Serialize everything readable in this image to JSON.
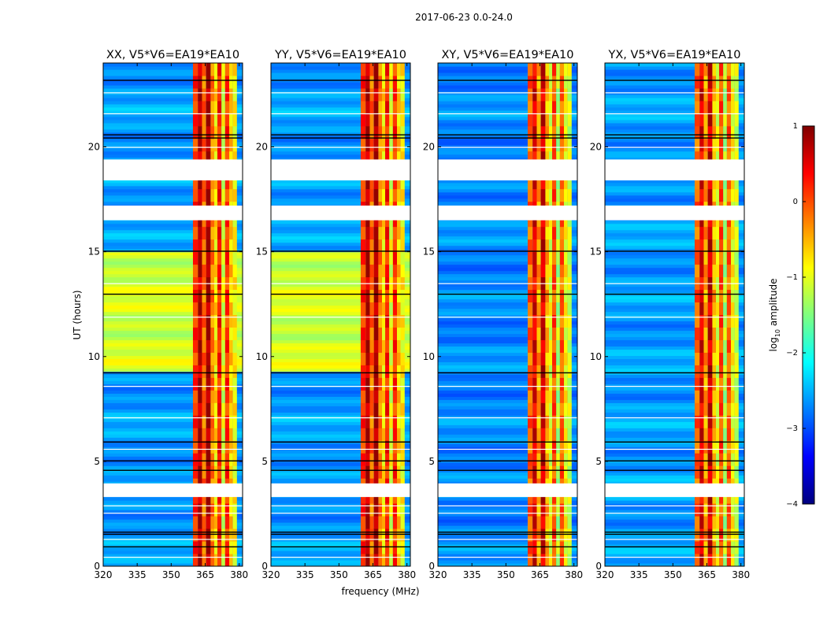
{
  "figure_title": "2017-06-23 0.0-24.0",
  "colormap": [
    "#00007f",
    "#0000ff",
    "#007fff",
    "#00ffff",
    "#7fff7f",
    "#ffff00",
    "#ff7f00",
    "#ff0000",
    "#7f0000"
  ],
  "chart_data": {
    "type": "heatmap",
    "suptitle": "2017-06-23 0.0-24.0",
    "shared": {
      "xlabel": "frequency (MHz)",
      "ylabel": "UT (hours)",
      "xlim": [
        320,
        381.5
      ],
      "ylim": [
        0,
        24
      ],
      "x_ticks": [
        320,
        335,
        350,
        365,
        380
      ],
      "x_tick_labels": [
        "320",
        "335",
        "350",
        "365",
        "380"
      ],
      "y_ticks": [
        0,
        5,
        10,
        15,
        20
      ],
      "y_tick_labels": [
        "0",
        "5",
        "10",
        "15",
        "20"
      ],
      "bright_channel_band_mhz": [
        359,
        380
      ],
      "masked_gaps_hours": [
        [
          3.3,
          3.95
        ],
        [
          16.5,
          17.2
        ],
        [
          18.4,
          19.4
        ]
      ]
    },
    "panels": [
      {
        "title": "XX, V5*V6=EA19*EA10",
        "polarization": "XX",
        "background_log_amplitude_by_hour": [
          [
            0,
            -2.6
          ],
          [
            9.3,
            -2.6
          ],
          [
            9.3,
            -1.1
          ],
          [
            15,
            -1.1
          ],
          [
            15,
            -2.6
          ],
          [
            24,
            -2.6
          ]
        ]
      },
      {
        "title": "YY, V5*V6=EA19*EA10",
        "polarization": "YY",
        "background_log_amplitude_by_hour": [
          [
            0,
            -2.6
          ],
          [
            9.3,
            -2.6
          ],
          [
            9.3,
            -1.1
          ],
          [
            15,
            -1.1
          ],
          [
            15,
            -2.6
          ],
          [
            24,
            -2.6
          ]
        ]
      },
      {
        "title": "XY, V5*V6=EA19*EA10",
        "polarization": "XY",
        "background_log_amplitude_by_hour": [
          [
            0,
            -2.7
          ],
          [
            24,
            -2.7
          ]
        ]
      },
      {
        "title": "YX, V5*V6=EA19*EA10",
        "polarization": "YX",
        "background_log_amplitude_by_hour": [
          [
            0,
            -2.6
          ],
          [
            24,
            -2.6
          ]
        ]
      }
    ],
    "colorbar": {
      "label": "log10 amplitude",
      "label_main": "log",
      "label_sub": "10",
      "label_rest": " amplitude",
      "range": [
        -4,
        1
      ],
      "ticks": [
        1,
        0,
        -1,
        -2,
        -3,
        -4
      ],
      "tick_labels": [
        "1",
        "0",
        "−1",
        "−2",
        "−3",
        "−4"
      ]
    }
  }
}
